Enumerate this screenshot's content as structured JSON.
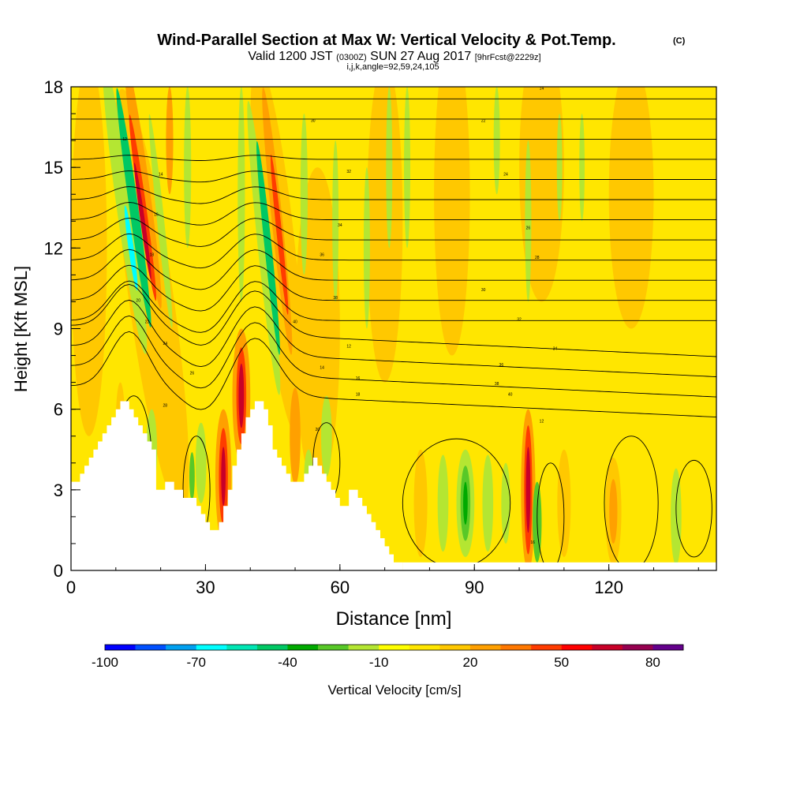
{
  "chart_data": {
    "type": "heatmap",
    "title": "Wind-Parallel Section at Max W: Vertical Velocity & Pot.Temp.",
    "title_mark": "(C)",
    "subtitle_parts": [
      "Valid 1200 JST",
      "(0300Z)",
      "SUN 27 Aug 2017",
      "[9hrFcst@2229z]"
    ],
    "subtitle2": "i,j,k,angle=92,59,24,105",
    "xlabel": "Distance [nm]",
    "ylabel": "Height [Kft MSL]",
    "xlim": [
      0,
      144
    ],
    "ylim": [
      0,
      18
    ],
    "x_ticks": [
      0,
      30,
      60,
      90,
      120
    ],
    "y_ticks": [
      0,
      3,
      6,
      9,
      12,
      15,
      18
    ],
    "colorbar": {
      "label": "Vertical Velocity [cm/s]",
      "tick_labels": [
        "-100",
        "-70",
        "-40",
        "-10",
        "20",
        "50",
        "80"
      ],
      "min": -100,
      "max": 90,
      "step": 10,
      "colors": [
        "#0000ff",
        "#0050ff",
        "#00a0f0",
        "#00ffff",
        "#00e6b4",
        "#00c864",
        "#00aa00",
        "#58c828",
        "#b4e632",
        "#ffff00",
        "#ffe600",
        "#ffc800",
        "#ffa000",
        "#ff7800",
        "#ff3c00",
        "#ff0000",
        "#c80028",
        "#960050",
        "#64008c"
      ]
    },
    "terrain_profile_kft": [
      [
        0,
        3.3
      ],
      [
        1,
        3.3
      ],
      [
        2,
        3.6
      ],
      [
        3,
        3.9
      ],
      [
        4,
        4.2
      ],
      [
        5,
        4.5
      ],
      [
        6,
        4.8
      ],
      [
        7,
        5.1
      ],
      [
        8,
        5.4
      ],
      [
        9,
        5.7
      ],
      [
        10,
        6.0
      ],
      [
        11,
        6.3
      ],
      [
        12,
        6.3
      ],
      [
        13,
        6.0
      ],
      [
        14,
        5.7
      ],
      [
        15,
        5.4
      ],
      [
        16,
        5.1
      ],
      [
        17,
        4.8
      ],
      [
        18,
        4.5
      ],
      [
        19,
        3.0
      ],
      [
        20,
        3.0
      ],
      [
        21,
        3.3
      ],
      [
        22,
        3.3
      ],
      [
        23,
        3.0
      ],
      [
        24,
        3.0
      ],
      [
        25,
        2.7
      ],
      [
        26,
        2.7
      ],
      [
        27,
        2.7
      ],
      [
        28,
        2.4
      ],
      [
        29,
        2.1
      ],
      [
        30,
        1.8
      ],
      [
        31,
        1.5
      ],
      [
        32,
        1.5
      ],
      [
        33,
        1.8
      ],
      [
        34,
        2.4
      ],
      [
        35,
        3.0
      ],
      [
        36,
        3.9
      ],
      [
        37,
        4.5
      ],
      [
        38,
        5.1
      ],
      [
        39,
        5.7
      ],
      [
        40,
        6.0
      ],
      [
        41,
        6.3
      ],
      [
        42,
        6.3
      ],
      [
        43,
        6.0
      ],
      [
        44,
        5.4
      ],
      [
        45,
        4.5
      ],
      [
        46,
        4.2
      ],
      [
        47,
        3.9
      ],
      [
        48,
        3.6
      ],
      [
        49,
        3.3
      ],
      [
        50,
        3.3
      ],
      [
        51,
        3.3
      ],
      [
        52,
        3.6
      ],
      [
        53,
        3.9
      ],
      [
        54,
        4.2
      ],
      [
        55,
        3.9
      ],
      [
        56,
        3.6
      ],
      [
        57,
        3.3
      ],
      [
        58,
        3.0
      ],
      [
        59,
        2.7
      ],
      [
        60,
        2.4
      ],
      [
        61,
        2.4
      ],
      [
        62,
        3.0
      ],
      [
        63,
        3.0
      ],
      [
        64,
        2.7
      ],
      [
        65,
        2.4
      ],
      [
        66,
        2.1
      ],
      [
        67,
        1.8
      ],
      [
        68,
        1.5
      ],
      [
        69,
        1.2
      ],
      [
        70,
        0.9
      ],
      [
        71,
        0.6
      ],
      [
        72,
        0.3
      ],
      [
        73,
        0.3
      ],
      [
        74,
        0.0
      ],
      [
        144,
        0.0
      ]
    ],
    "isentrope_labels": [
      "12",
      "14",
      "16",
      "18",
      "20",
      "22",
      "24",
      "26",
      "28",
      "30",
      "32",
      "34",
      "36",
      "38",
      "40"
    ]
  }
}
